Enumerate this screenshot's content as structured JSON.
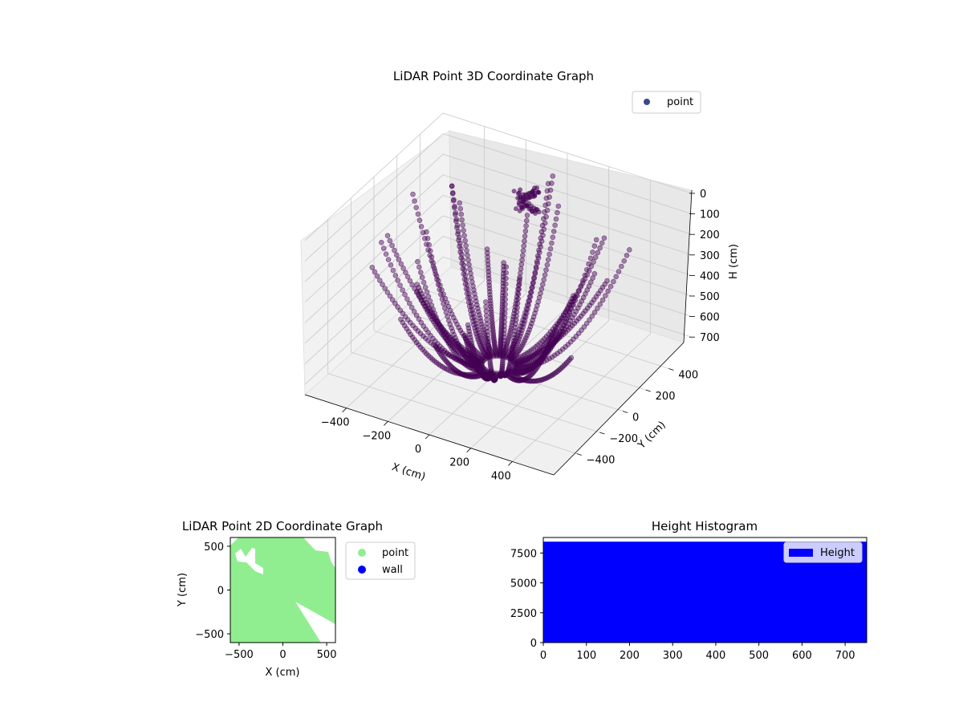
{
  "figure": {
    "background": "#ffffff"
  },
  "chart_data": [
    {
      "type": "scatter3d",
      "title": "LiDAR Point 3D Coordinate Graph",
      "xlabel": "X (cm)",
      "ylabel": "Y (cm)",
      "zlabel": "H (cm)",
      "xticks": [
        "−400",
        "−200",
        "0",
        "200",
        "400"
      ],
      "yticks": [
        "−400",
        "−200",
        "0",
        "200",
        "400"
      ],
      "zticks": [
        "0",
        "100",
        "200",
        "300",
        "400",
        "500",
        "600",
        "700"
      ],
      "xlim": [
        -600,
        600
      ],
      "ylim": [
        -600,
        600
      ],
      "zlim": [
        0,
        750
      ],
      "z_inverted": true,
      "grid": true,
      "legend": {
        "placement": "upper-right",
        "entries": [
          {
            "name": "point",
            "color": "#3b4a8c"
          }
        ]
      },
      "point_color": "#440154",
      "point_alpha": 0.45,
      "sweeps": {
        "count": 34,
        "start_angle_deg": 10,
        "step_deg": 10.5,
        "points_per_sweep": 44,
        "near_range_cm": 70,
        "far_range_cm": 560
      }
    },
    {
      "type": "scatter",
      "title": "LiDAR Point 2D Coordinate Graph",
      "xlabel": "X (cm)",
      "ylabel": "Y (cm)",
      "xticks": [
        "−500",
        "0",
        "500"
      ],
      "yticks": [
        "−500",
        "0",
        "500"
      ],
      "xlim": [
        -600,
        600
      ],
      "ylim": [
        -600,
        600
      ],
      "series": [
        {
          "name": "point",
          "color": "#90ee90"
        },
        {
          "name": "wall",
          "color": "#0000ff"
        }
      ],
      "legend": {
        "placement": "outside-right"
      }
    },
    {
      "type": "bar",
      "title": "Height Histogram",
      "xticks": [
        "0",
        "100",
        "200",
        "300",
        "400",
        "500",
        "600",
        "700"
      ],
      "yticks": [
        "0",
        "2500",
        "5000",
        "7500"
      ],
      "xlim": [
        0,
        750
      ],
      "ylim": [
        0,
        8800
      ],
      "series": [
        {
          "name": "Height",
          "color": "#0000ff",
          "value": 8450
        }
      ],
      "legend": {
        "placement": "upper-right"
      }
    }
  ]
}
